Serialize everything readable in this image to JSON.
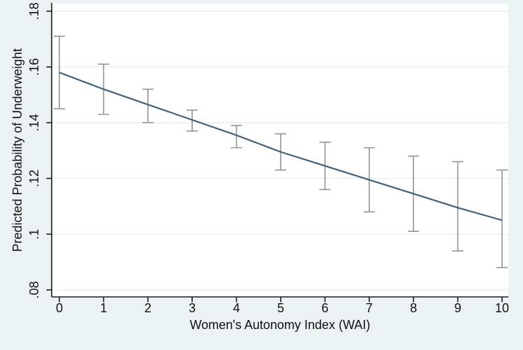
{
  "figure": {
    "background_color": "#eaf2f3",
    "plot_background": "#ffffff",
    "grid_color": "#e4edf0",
    "axis_color": "#1a1a1a",
    "text_color": "#111111"
  },
  "chart_data": {
    "type": "line",
    "title": "",
    "xlabel": "Women's Autonomy Index (WAI)",
    "ylabel": "Predicted Probability of Underweight",
    "xlim": [
      0,
      10
    ],
    "ylim": [
      0.08,
      0.18
    ],
    "grid": "horizontal",
    "legend": "none",
    "x_ticks": [
      {
        "value": 0,
        "label": "0"
      },
      {
        "value": 1,
        "label": "1"
      },
      {
        "value": 2,
        "label": "2"
      },
      {
        "value": 3,
        "label": "3"
      },
      {
        "value": 4,
        "label": "4"
      },
      {
        "value": 5,
        "label": "5"
      },
      {
        "value": 6,
        "label": "6"
      },
      {
        "value": 7,
        "label": "7"
      },
      {
        "value": 8,
        "label": "8"
      },
      {
        "value": 9,
        "label": "9"
      },
      {
        "value": 10,
        "label": "10"
      }
    ],
    "y_ticks": [
      {
        "value": 0.08,
        "label": ".08"
      },
      {
        "value": 0.1,
        "label": ".1"
      },
      {
        "value": 0.12,
        "label": ".12"
      },
      {
        "value": 0.14,
        "label": ".14"
      },
      {
        "value": 0.16,
        "label": ".16"
      },
      {
        "value": 0.18,
        "label": ".18"
      }
    ],
    "series": [
      {
        "name": "predicted-probability",
        "type": "line",
        "color": "#426176",
        "x": [
          0,
          1,
          2,
          3,
          4,
          5,
          6,
          7,
          8,
          9,
          10
        ],
        "y": [
          0.158,
          0.152,
          0.1465,
          0.141,
          0.1355,
          0.1295,
          0.1245,
          0.1195,
          0.1145,
          0.1095,
          0.105
        ]
      },
      {
        "name": "95%-confidence-interval",
        "type": "errorbar",
        "color": "#8e9497",
        "x": [
          0,
          1,
          2,
          3,
          4,
          5,
          6,
          7,
          8,
          9,
          10
        ],
        "low": [
          0.145,
          0.143,
          0.14,
          0.137,
          0.131,
          0.123,
          0.116,
          0.108,
          0.101,
          0.094,
          0.088
        ],
        "high": [
          0.171,
          0.161,
          0.152,
          0.1445,
          0.139,
          0.136,
          0.133,
          0.131,
          0.128,
          0.126,
          0.123
        ]
      }
    ]
  }
}
